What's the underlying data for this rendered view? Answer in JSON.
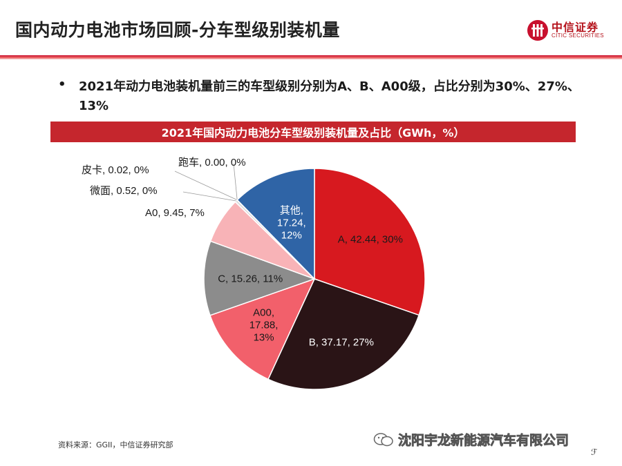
{
  "header": {
    "title": "国内动力电池市场回顾-分车型级别装机量",
    "logo_cn": "中信证券",
    "logo_en": "CITIC SECURITIES"
  },
  "bullet": {
    "text": "2021年动力电池装机量前三的车型级别分别为A、B、A00级，占比分别为30%、27%、13%"
  },
  "chart_data": {
    "type": "pie",
    "title": "2021年国内动力电池分车型级别装机量及占比（GWh，%）",
    "slices": [
      {
        "label": "A",
        "value": 42.44,
        "pct": "30%",
        "text": "A, 42.44, 30%",
        "color": "#d7191f"
      },
      {
        "label": "B",
        "value": 37.17,
        "pct": "27%",
        "text": "B, 37.17, 27%",
        "color": "#2a1416"
      },
      {
        "label": "A00",
        "value": 17.88,
        "pct": "13%",
        "text": "A00, 17.88, 13%",
        "color": "#f2606b"
      },
      {
        "label": "C",
        "value": 15.26,
        "pct": "11%",
        "text": "C, 15.26, 11%",
        "color": "#8c8c8c"
      },
      {
        "label": "A0",
        "value": 9.45,
        "pct": "7%",
        "text": "A0, 9.45, 7%",
        "color": "#f8b3b7"
      },
      {
        "label": "微面",
        "value": 0.52,
        "pct": "0%",
        "text": "微面, 0.52, 0%",
        "color": "#dcdcdc"
      },
      {
        "label": "皮卡",
        "value": 0.02,
        "pct": "0%",
        "text": "皮卡, 0.02, 0%",
        "color": "#f0a0a0"
      },
      {
        "label": "跑车",
        "value": 0.0,
        "pct": "0%",
        "text": "跑车, 0.00, 0%",
        "color": "#bbbbbb"
      },
      {
        "label": "其他",
        "value": 17.24,
        "pct": "12%",
        "text": "其他, 17.24, 12%",
        "color": "#2f64a6"
      }
    ]
  },
  "footer": {
    "source": "资料来源：GGII，中信证券研究部",
    "watermark": "沈阳宇龙新能源汽车有限公司",
    "corner": "ℱ"
  }
}
